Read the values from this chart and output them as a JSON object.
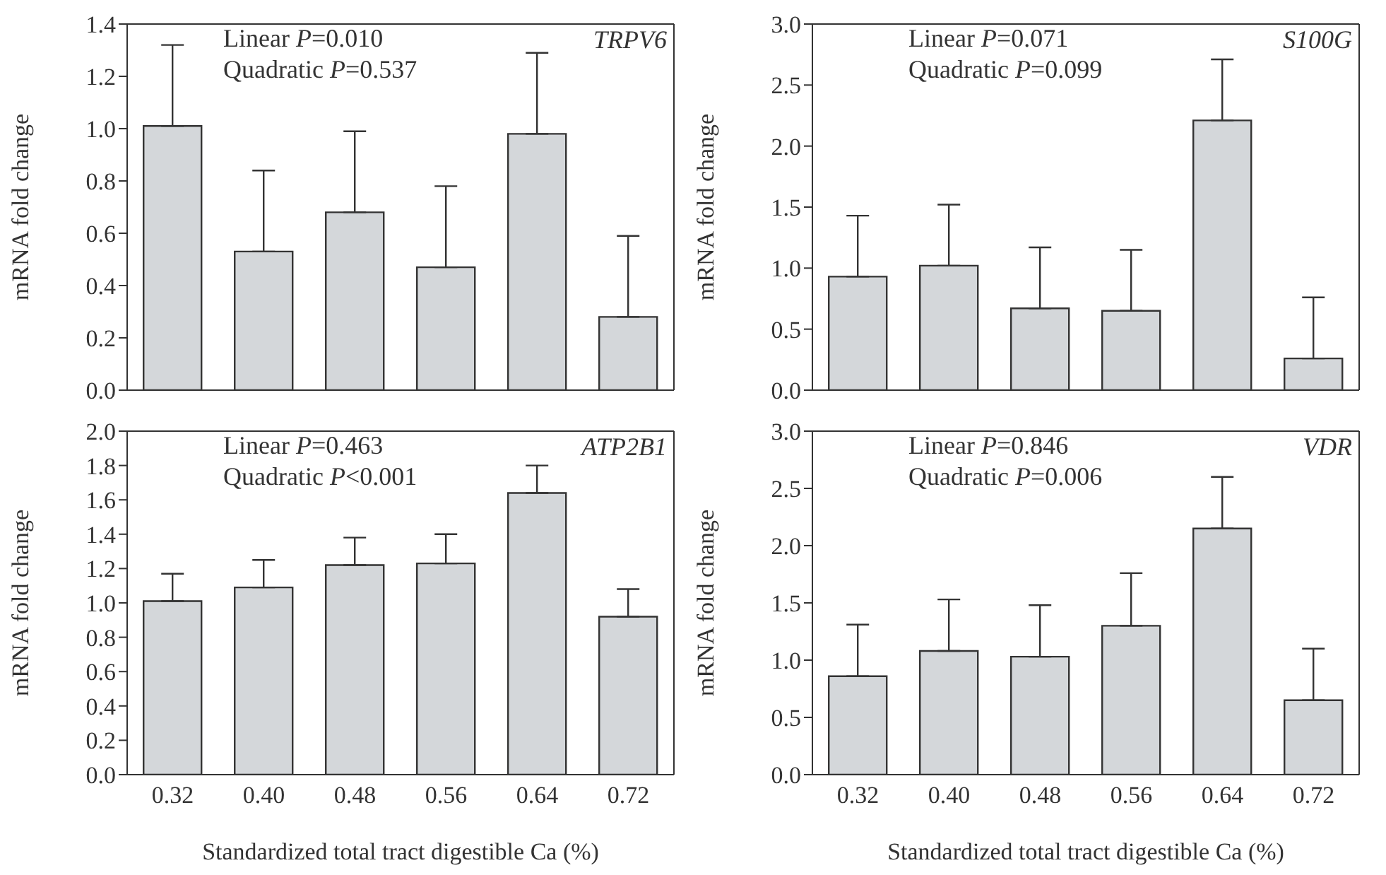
{
  "chart_data": [
    {
      "type": "bar",
      "categories": [
        null,
        null,
        null,
        null,
        null,
        null
      ],
      "values": [
        1.01,
        0.53,
        0.68,
        0.47,
        0.98,
        0.28
      ],
      "errors": [
        [
          1.01,
          1.32
        ],
        [
          0.53,
          0.84
        ],
        [
          0.68,
          0.99
        ],
        [
          0.47,
          0.78
        ],
        [
          0.98,
          1.29
        ],
        [
          0.28,
          0.59
        ]
      ],
      "color": "#d4d7da",
      "ylabel": "mRNA fold change",
      "ylim": [
        0,
        1.4
      ],
      "yticks": [
        {
          "value": 0,
          "label": "0.0"
        },
        0.2,
        0.4,
        0.6,
        0.8,
        {
          "value": 1,
          "label": "1.0"
        },
        1.2,
        1.4
      ],
      "tick_labels": "y",
      "grid": false,
      "annotations": [
        "Linear P=0.010",
        "Quadratic P=0.537",
        "TRPV6"
      ]
    },
    {
      "type": "bar",
      "categories": [
        null,
        null,
        null,
        null,
        null,
        null
      ],
      "values": [
        0.93,
        1.02,
        0.67,
        0.65,
        2.21,
        0.26
      ],
      "errors": [
        [
          0.93,
          1.43
        ],
        [
          1.02,
          1.52
        ],
        [
          0.67,
          1.17
        ],
        [
          0.65,
          1.15
        ],
        [
          2.21,
          2.71
        ],
        [
          0.26,
          0.76
        ]
      ],
      "color": "#d4d7da",
      "ylabel": "mRNA fold change",
      "ylim": [
        0,
        3
      ],
      "yticks": [
        {
          "value": 0,
          "label": "0.0"
        },
        0.5,
        {
          "value": 1,
          "label": "1.0"
        },
        1.5,
        {
          "value": 2,
          "label": "2.0"
        },
        2.5,
        {
          "value": 3,
          "label": "3.0"
        }
      ],
      "tick_labels": "y",
      "grid": false,
      "annotations": [
        "Linear P=0.071",
        "Quadratic P=0.099",
        "S100G"
      ]
    },
    {
      "type": "bar",
      "categories": [
        "0.32",
        "0.40",
        "0.48",
        "0.56",
        "0.64",
        "0.72"
      ],
      "values": [
        1.01,
        1.09,
        1.22,
        1.23,
        1.64,
        0.92
      ],
      "errors": [
        [
          1.01,
          1.17
        ],
        [
          1.09,
          1.25
        ],
        [
          1.22,
          1.38
        ],
        [
          1.23,
          1.4
        ],
        [
          1.64,
          1.8
        ],
        [
          0.92,
          1.08
        ]
      ],
      "color": "#d4d7da",
      "xlabel": "Standardized total tract digestible Ca (%)",
      "ylabel": "mRNA fold change",
      "ylim": [
        0,
        2
      ],
      "yticks": [
        {
          "value": 0,
          "label": "0.0"
        },
        0.2,
        0.4,
        0.6,
        0.8,
        {
          "value": 1,
          "label": "1.0"
        },
        1.2,
        1.4,
        1.6,
        1.8,
        {
          "value": 2,
          "label": "2.0"
        }
      ],
      "grid": false,
      "annotations": [
        "Linear P=0.463",
        "Quadratic P<0.001",
        "ATP2B1"
      ]
    },
    {
      "type": "bar",
      "categories": [
        "0.32",
        "0.40",
        "0.48",
        "0.56",
        "0.64",
        "0.72"
      ],
      "values": [
        0.86,
        1.08,
        1.03,
        1.3,
        2.15,
        0.65
      ],
      "errors": [
        [
          0.86,
          1.31
        ],
        [
          1.08,
          1.53
        ],
        [
          1.03,
          1.48
        ],
        [
          1.3,
          1.76
        ],
        [
          2.15,
          2.6
        ],
        [
          0.65,
          1.1
        ]
      ],
      "color": "#d4d7da",
      "xlabel": "Standardized total tract digestible Ca (%)",
      "ylabel": "mRNA fold change",
      "ylim": [
        0,
        3
      ],
      "yticks": [
        {
          "value": 0,
          "label": "0.0"
        },
        0.5,
        {
          "value": 1,
          "label": "1.0"
        },
        1.5,
        {
          "value": 2,
          "label": "2.0"
        },
        2.5,
        {
          "value": 3,
          "label": "3.0"
        }
      ],
      "grid": false,
      "annotations": [
        "Linear P=0.846",
        "Quadratic P=0.006",
        "VDR"
      ]
    }
  ]
}
